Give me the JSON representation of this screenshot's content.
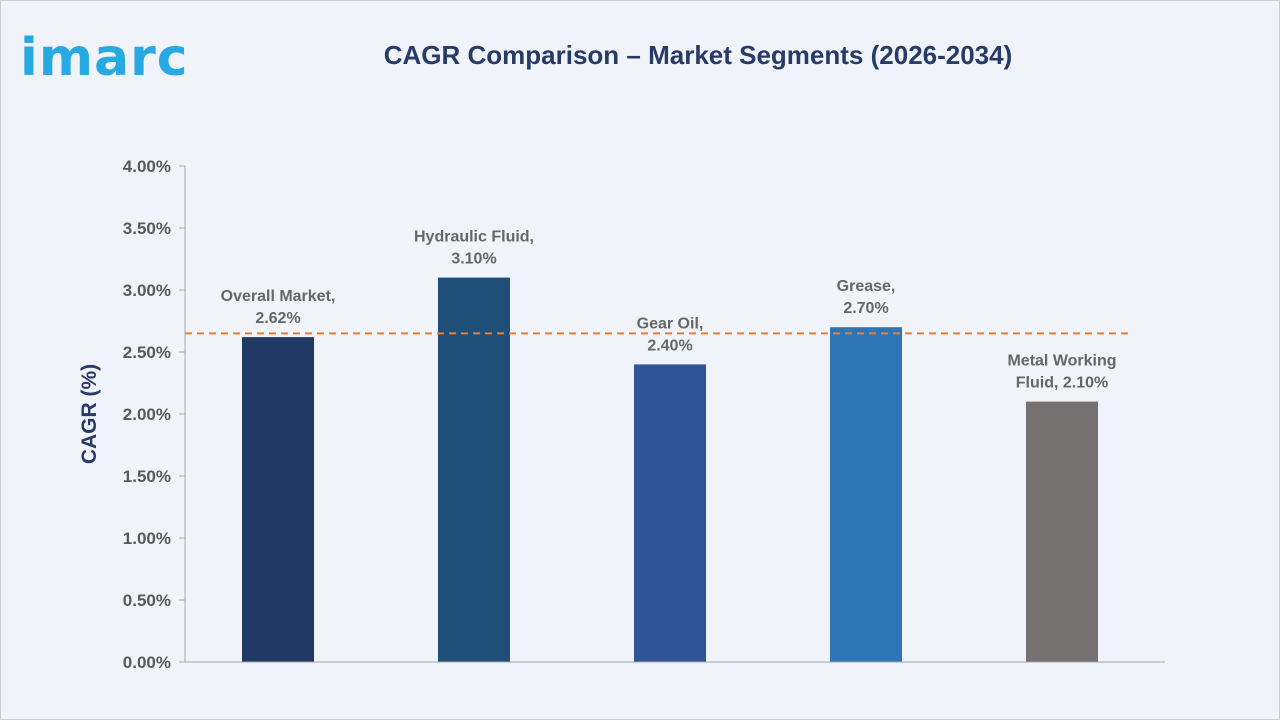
{
  "brand": {
    "logo_text": "imarc"
  },
  "chart_data": {
    "type": "bar",
    "title": "CAGR Comparison – Market Segments (2026-2034)",
    "ylabel": "CAGR (%)",
    "xlabel": "",
    "ylim": [
      0,
      4.0
    ],
    "yticks": [
      "0.00%",
      "0.50%",
      "1.00%",
      "1.50%",
      "2.00%",
      "2.50%",
      "3.00%",
      "3.50%",
      "4.00%"
    ],
    "categories": [
      "Overall Market",
      "Hydraulic Fluid",
      "Gear Oil",
      "Grease",
      "Metal Working Fluid"
    ],
    "values": [
      2.62,
      3.1,
      2.4,
      2.7,
      2.1
    ],
    "data_labels": [
      [
        "Overall Market,",
        "2.62%"
      ],
      [
        "Hydraulic Fluid,",
        "3.10%"
      ],
      [
        "Gear Oil,",
        "2.40%"
      ],
      [
        "Grease,",
        "2.70%"
      ],
      [
        "Metal Working",
        "Fluid, 2.10%"
      ]
    ],
    "colors": [
      "#203864",
      "#1f4e79",
      "#2f5597",
      "#2e75b6",
      "#767171"
    ],
    "reference_line": {
      "value": 2.65,
      "style": "dashed",
      "color": "#ed7d31"
    },
    "grid": false,
    "legend": "none"
  }
}
